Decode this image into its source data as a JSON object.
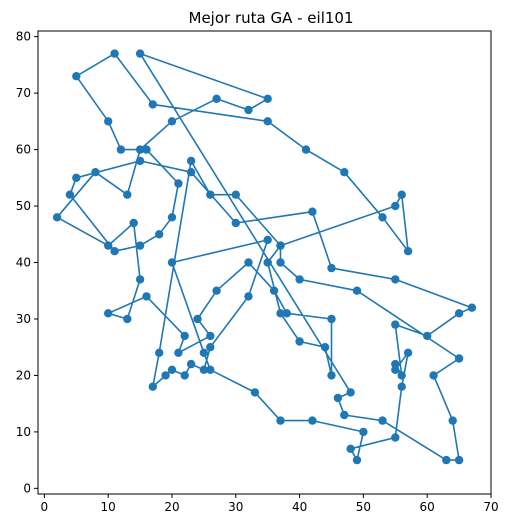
{
  "chart_data": {
    "type": "line",
    "title": "Mejor ruta GA - eil101",
    "xlabel": "",
    "ylabel": "",
    "xlim": [
      -1,
      70
    ],
    "ylim": [
      -1,
      81
    ],
    "xticks": [
      0,
      10,
      20,
      30,
      40,
      50,
      60,
      70
    ],
    "yticks": [
      0,
      10,
      20,
      30,
      40,
      50,
      60,
      70,
      80
    ],
    "grid": false,
    "series": [
      {
        "color": "#1f77b4",
        "marker": "circle",
        "closed": true,
        "x": [
          15,
          35,
          32,
          27,
          20,
          15,
          13,
          8,
          2,
          10,
          14,
          15,
          13,
          10,
          16,
          22,
          21,
          26,
          24,
          27,
          32,
          36,
          38,
          45,
          45,
          44,
          40,
          37,
          35,
          37,
          30,
          26,
          23,
          18,
          17,
          19,
          20,
          22,
          23,
          25,
          26,
          32,
          35,
          20,
          25,
          26,
          33,
          37,
          42,
          50,
          49,
          48,
          55,
          56,
          57,
          55,
          55,
          56,
          55,
          60,
          65,
          67,
          55,
          45,
          42,
          30,
          23,
          15,
          5,
          4,
          11,
          15,
          18,
          20,
          21,
          16,
          12,
          10,
          5,
          11,
          17,
          35,
          41,
          47,
          53,
          57,
          56,
          55,
          37,
          37,
          40,
          49,
          65,
          61,
          64,
          65,
          63,
          53,
          47,
          46,
          48
        ],
        "y": [
          77,
          69,
          67,
          69,
          65,
          60,
          52,
          56,
          48,
          43,
          47,
          37,
          30,
          31,
          34,
          27,
          24,
          27,
          30,
          35,
          40,
          35,
          31,
          30,
          20,
          25,
          26,
          31,
          40,
          43,
          52,
          52,
          58,
          24,
          18,
          20,
          21,
          20,
          22,
          21,
          25,
          34,
          44,
          40,
          24,
          21,
          17,
          12,
          12,
          10,
          5,
          7,
          9,
          18,
          24,
          21,
          22,
          20,
          29,
          27,
          31,
          32,
          37,
          39,
          49,
          47,
          56,
          58,
          55,
          52,
          42,
          43,
          45,
          48,
          54,
          60,
          60,
          65,
          73,
          77,
          68,
          65,
          60,
          56,
          48,
          42,
          52,
          50,
          43,
          40,
          37,
          35,
          23,
          20,
          12,
          5,
          5,
          12,
          13,
          16,
          17
        ]
      }
    ]
  }
}
